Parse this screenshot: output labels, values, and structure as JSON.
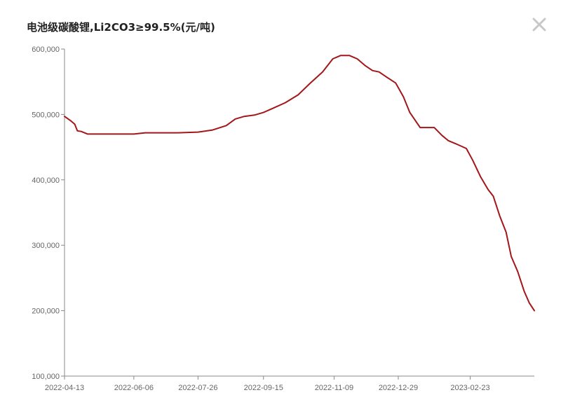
{
  "title": "电池级碳酸锂,Li2CO3≥99.5%(元/吨)",
  "close_icon": "close-icon",
  "colors": {
    "line": "#a3161a",
    "axis": "#888888",
    "text": "#666666"
  },
  "chart_data": {
    "type": "line",
    "title": "电池级碳酸锂,Li2CO3≥99.5%(元/吨)",
    "xlabel": "",
    "ylabel": "",
    "ylim": [
      100000,
      600000
    ],
    "xlim": [
      "2022-04-13",
      "2023-04-14"
    ],
    "yticks": [
      "100,000",
      "200,000",
      "300,000",
      "400,000",
      "500,000",
      "600,000"
    ],
    "ytick_values": [
      100000,
      200000,
      300000,
      400000,
      500000,
      600000
    ],
    "xticks": [
      "2022-04-13",
      "2022-06-06",
      "2022-07-26",
      "2022-09-15",
      "2022-11-09",
      "2022-12-29",
      "2023-02-23"
    ],
    "grid": false,
    "legend": "none",
    "series": [
      {
        "x": [
          "2022-04-13",
          "2022-04-18",
          "2022-04-21",
          "2022-04-23",
          "2022-04-26",
          "2022-05-01",
          "2022-05-20",
          "2022-06-06",
          "2022-06-15",
          "2022-07-10",
          "2022-07-26",
          "2022-08-06",
          "2022-08-17",
          "2022-08-24",
          "2022-08-31",
          "2022-09-08",
          "2022-09-15",
          "2022-09-23",
          "2022-10-02",
          "2022-10-12",
          "2022-10-21",
          "2022-10-31",
          "2022-11-08",
          "2022-11-14",
          "2022-11-21",
          "2022-11-27",
          "2022-12-03",
          "2022-12-09",
          "2022-12-14",
          "2022-12-20",
          "2022-12-27",
          "2023-01-02",
          "2023-01-07",
          "2023-01-15",
          "2023-01-21",
          "2023-01-26",
          "2023-02-01",
          "2023-02-06",
          "2023-02-12",
          "2023-02-20",
          "2023-02-25",
          "2023-03-03",
          "2023-03-09",
          "2023-03-13",
          "2023-03-18",
          "2023-03-23",
          "2023-03-27",
          "2023-04-01",
          "2023-04-06",
          "2023-04-10",
          "2023-04-14"
        ],
        "values": [
          497000,
          490000,
          485000,
          475000,
          474000,
          470000,
          470000,
          470000,
          472000,
          472000,
          473000,
          476000,
          483000,
          493000,
          497000,
          499000,
          503000,
          510000,
          518000,
          530000,
          547000,
          565000,
          585000,
          590000,
          590000,
          585000,
          575000,
          567000,
          565000,
          557000,
          548000,
          527000,
          503000,
          480000,
          480000,
          480000,
          468000,
          460000,
          455000,
          448000,
          430000,
          405000,
          385000,
          375000,
          345000,
          320000,
          283000,
          260000,
          230000,
          212000,
          200000
        ]
      }
    ]
  }
}
